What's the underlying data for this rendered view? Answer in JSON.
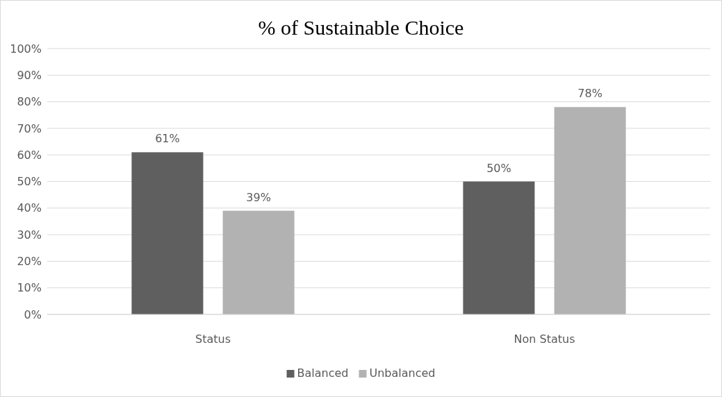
{
  "chart_data": {
    "type": "bar",
    "title": "% of Sustainable Choice",
    "categories": [
      "Status",
      "Non Status"
    ],
    "series": [
      {
        "name": "Balanced",
        "color": "#5f5f5f",
        "values": [
          61,
          50
        ],
        "value_labels": [
          "61%",
          "50%"
        ]
      },
      {
        "name": "Unbalanced",
        "color": "#b2b2b2",
        "values": [
          39,
          78
        ],
        "value_labels": [
          "39%",
          "78%"
        ]
      }
    ],
    "ylim": [
      0,
      100
    ],
    "yticks": [
      {
        "value": 0,
        "label": "0%"
      },
      {
        "value": 10,
        "label": "10%"
      },
      {
        "value": 20,
        "label": "20%"
      },
      {
        "value": 30,
        "label": "30%"
      },
      {
        "value": 40,
        "label": "40%"
      },
      {
        "value": 50,
        "label": "50%"
      },
      {
        "value": 60,
        "label": "60%"
      },
      {
        "value": 70,
        "label": "70%"
      },
      {
        "value": 80,
        "label": "80%"
      },
      {
        "value": 90,
        "label": "90%"
      },
      {
        "value": 100,
        "label": "100%"
      }
    ],
    "grid": "y",
    "legend": "bottom"
  }
}
